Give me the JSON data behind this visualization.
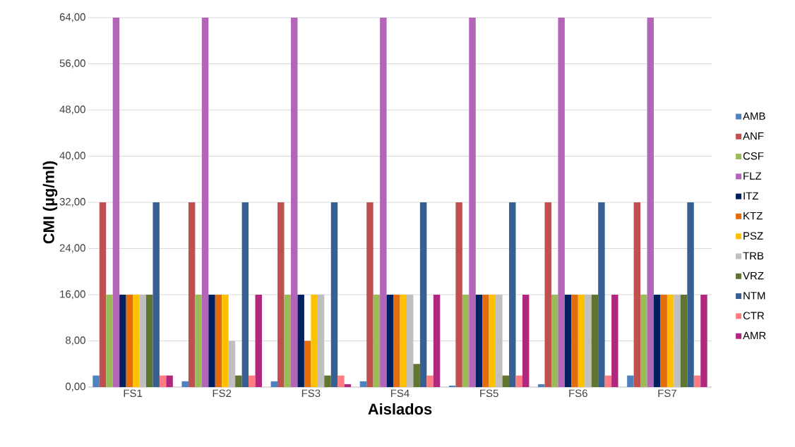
{
  "chart_data": {
    "type": "bar",
    "xlabel": "Aislados",
    "ylabel": "CMI (µg/ml)",
    "categories": [
      "FS1",
      "FS2",
      "FS3",
      "FS4",
      "FS5",
      "FS6",
      "FS7"
    ],
    "series": [
      {
        "name": "AMB",
        "color": "#4f81bd",
        "values": [
          2,
          1,
          1,
          1,
          0.25,
          0.5,
          2
        ]
      },
      {
        "name": "ANF",
        "color": "#c0504d",
        "values": [
          32,
          32,
          32,
          32,
          32,
          32,
          32
        ]
      },
      {
        "name": "CSF",
        "color": "#9bbb59",
        "values": [
          16,
          16,
          16,
          16,
          16,
          16,
          16
        ]
      },
      {
        "name": "FLZ",
        "color": "#b366b8",
        "values": [
          64,
          64,
          64,
          64,
          64,
          64,
          64
        ]
      },
      {
        "name": "ITZ",
        "color": "#002060",
        "values": [
          16,
          16,
          16,
          16,
          16,
          16,
          16
        ]
      },
      {
        "name": "KTZ",
        "color": "#e46c0a",
        "values": [
          16,
          16,
          8,
          16,
          16,
          16,
          16
        ]
      },
      {
        "name": "PSZ",
        "color": "#ffc000",
        "values": [
          16,
          16,
          16,
          16,
          16,
          16,
          16
        ]
      },
      {
        "name": "TRB",
        "color": "#bfbfbf",
        "values": [
          16,
          8,
          16,
          16,
          16,
          16,
          16
        ]
      },
      {
        "name": "VRZ",
        "color": "#5f7530",
        "values": [
          16,
          2,
          2,
          4,
          2,
          16,
          16
        ]
      },
      {
        "name": "NTM",
        "color": "#366092",
        "values": [
          32,
          32,
          32,
          32,
          32,
          32,
          32
        ]
      },
      {
        "name": "CTR",
        "color": "#ff7c80",
        "values": [
          2,
          2,
          2,
          2,
          2,
          2,
          2
        ]
      },
      {
        "name": "AMR",
        "color": "#b0287e",
        "values": [
          2,
          16,
          0.5,
          16,
          16,
          16,
          16
        ]
      }
    ],
    "ylim": [
      0,
      64
    ],
    "yticks": [
      {
        "value": 0,
        "label": "0,00"
      },
      {
        "value": 8,
        "label": "8,00"
      },
      {
        "value": 16,
        "label": "16,00"
      },
      {
        "value": 24,
        "label": "24,00"
      },
      {
        "value": 32,
        "label": "32,00"
      },
      {
        "value": 40,
        "label": "40,00"
      },
      {
        "value": 48,
        "label": "48,00"
      },
      {
        "value": 56,
        "label": "56,00"
      },
      {
        "value": 64,
        "label": "64,00"
      }
    ],
    "grid": "y",
    "legend": "right"
  }
}
